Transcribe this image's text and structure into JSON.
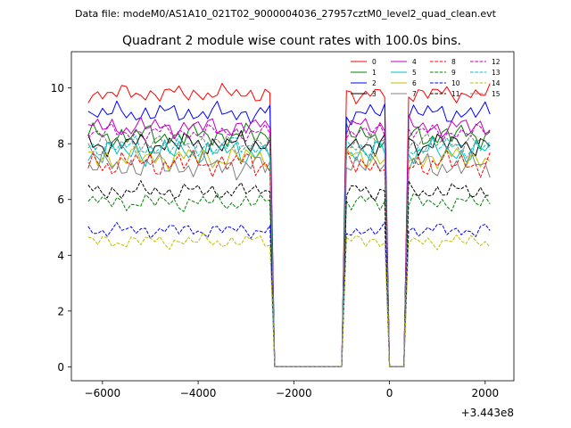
{
  "header": {
    "file_label": "Data file: modeM0/AS1A10_021T02_9000004036_27957cztM0_level2_quad_clean.evt"
  },
  "chart_data": {
    "type": "line",
    "title": "Quadrant 2 module wise count rates with 100.0s bins.",
    "xlabel": "",
    "ylabel": "",
    "x_offset_label": "+3.443e8",
    "xlim": [
      -6650,
      2600
    ],
    "ylim": [
      -0.5,
      11.3
    ],
    "x_ticks": [
      -6000,
      -4000,
      -2000,
      0,
      2000
    ],
    "x_tick_labels": [
      "−6000",
      "−4000",
      "−2000",
      "0",
      "2000"
    ],
    "y_ticks": [
      0,
      2,
      4,
      6,
      8,
      10
    ],
    "y_tick_labels": [
      "0",
      "2",
      "4",
      "6",
      "8",
      "10"
    ],
    "legend_position": "top-right",
    "series": [
      {
        "name": "0",
        "color": "#ff0000",
        "dash": "solid",
        "level": 9.8,
        "noise": 0.3,
        "phase": 0.3
      },
      {
        "name": "1",
        "color": "#008000",
        "dash": "solid",
        "level": 8.3,
        "noise": 0.4,
        "phase": 1.1
      },
      {
        "name": "2",
        "color": "#0000ff",
        "dash": "solid",
        "level": 9.1,
        "noise": 0.35,
        "phase": 2.0
      },
      {
        "name": "3",
        "color": "#000000",
        "dash": "solid",
        "level": 8.0,
        "noise": 0.4,
        "phase": 2.7
      },
      {
        "name": "4",
        "color": "#bf00bf",
        "dash": "solid",
        "level": 8.6,
        "noise": 0.35,
        "phase": 3.4
      },
      {
        "name": "5",
        "color": "#00bfbf",
        "dash": "solid",
        "level": 7.7,
        "noise": 0.45,
        "phase": 4.2
      },
      {
        "name": "6",
        "color": "#bfbf00",
        "dash": "solid",
        "level": 7.5,
        "noise": 0.4,
        "phase": 5.0
      },
      {
        "name": "7",
        "color": "#808080",
        "dash": "solid",
        "level": 7.2,
        "noise": 0.45,
        "phase": 5.7
      },
      {
        "name": "8",
        "color": "#ff0000",
        "dash": "dashed",
        "level": 7.3,
        "noise": 0.45,
        "phase": 0.8
      },
      {
        "name": "9",
        "color": "#008000",
        "dash": "dashed",
        "level": 5.9,
        "noise": 0.3,
        "phase": 1.6
      },
      {
        "name": "10",
        "color": "#0000ff",
        "dash": "dashed",
        "level": 4.9,
        "noise": 0.25,
        "phase": 2.4
      },
      {
        "name": "11",
        "color": "#000000",
        "dash": "dashed",
        "level": 6.3,
        "noise": 0.3,
        "phase": 3.1
      },
      {
        "name": "12",
        "color": "#bf00bf",
        "dash": "dashed",
        "level": 8.4,
        "noise": 0.3,
        "phase": 3.9
      },
      {
        "name": "13",
        "color": "#00bfbf",
        "dash": "dashed",
        "level": 7.9,
        "noise": 0.35,
        "phase": 4.6
      },
      {
        "name": "14",
        "color": "#bfbf00",
        "dash": "dashed",
        "level": 4.5,
        "noise": 0.25,
        "phase": 5.3
      },
      {
        "name": "15",
        "color": "#808080",
        "dash": "dashed",
        "level": 8.0,
        "noise": 0.35,
        "phase": 6.0
      }
    ],
    "time_segments": [
      {
        "start": -6300,
        "end": -2500
      },
      {
        "start": -900,
        "end": -100
      },
      {
        "start": 400,
        "end": 2150
      }
    ],
    "dip_times": [
      -5950
    ],
    "gap_level": 0,
    "bin_width": 100
  }
}
